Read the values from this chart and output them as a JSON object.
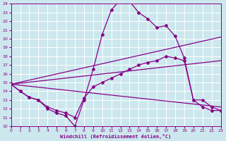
{
  "xlabel": "Windchill (Refroidissement éolien,°C)",
  "bg_color": "#cce8ee",
  "line_color": "#880088",
  "grid_color": "#ffffff",
  "xlim": [
    0,
    23
  ],
  "ylim": [
    10,
    24
  ],
  "xticks": [
    0,
    1,
    2,
    3,
    4,
    5,
    6,
    7,
    8,
    9,
    10,
    11,
    12,
    13,
    14,
    15,
    16,
    17,
    18,
    19,
    20,
    21,
    22,
    23
  ],
  "yticks": [
    10,
    11,
    12,
    13,
    14,
    15,
    16,
    17,
    18,
    19,
    20,
    21,
    22,
    23,
    24
  ],
  "line1_x": [
    0,
    1,
    2,
    3,
    4,
    5,
    6,
    7,
    8,
    9,
    10,
    11,
    12,
    13,
    14,
    15,
    16,
    17,
    18,
    19,
    20,
    21,
    22,
    23
  ],
  "line1_y": [
    14.8,
    14.0,
    13.3,
    13.0,
    12.0,
    11.5,
    11.2,
    10.0,
    13.0,
    16.5,
    20.5,
    23.3,
    24.5,
    24.3,
    23.0,
    22.3,
    21.3,
    21.5,
    20.3,
    17.8,
    13.0,
    13.0,
    12.2,
    11.8
  ],
  "line2_x": [
    0,
    1,
    2,
    3,
    4,
    5,
    6,
    7,
    8,
    9,
    10,
    11,
    12,
    13,
    14,
    15,
    16,
    17,
    18,
    19,
    20,
    21,
    22,
    23
  ],
  "line2_y": [
    14.8,
    14.0,
    13.3,
    13.0,
    12.2,
    11.8,
    11.5,
    11.0,
    13.2,
    14.5,
    15.0,
    15.5,
    16.0,
    16.5,
    17.0,
    17.3,
    17.5,
    18.0,
    17.8,
    17.5,
    13.0,
    12.2,
    11.8,
    11.8
  ],
  "line3_x": [
    0,
    23
  ],
  "line3_y": [
    14.8,
    20.2
  ],
  "line4_x": [
    0,
    23
  ],
  "line4_y": [
    14.8,
    17.5
  ],
  "line5_x": [
    0,
    23
  ],
  "line5_y": [
    14.8,
    12.2
  ]
}
